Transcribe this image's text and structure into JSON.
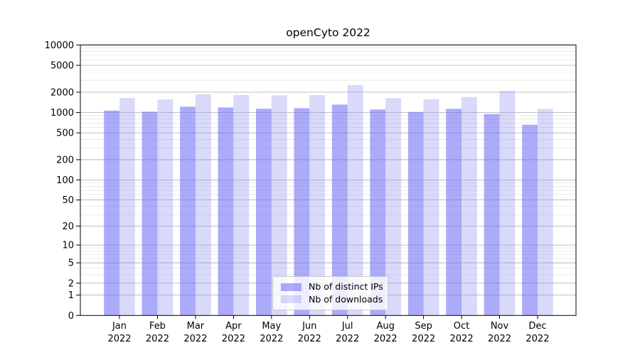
{
  "figure": {
    "title": "openCyto 2022"
  },
  "chart_data": {
    "type": "bar",
    "title": "openCyto 2022",
    "categories": [
      "Jan",
      "Feb",
      "Mar",
      "Apr",
      "May",
      "Jun",
      "Jul",
      "Aug",
      "Sep",
      "Oct",
      "Nov",
      "Dec"
    ],
    "year": "2022",
    "series": [
      {
        "name": "Nb of distinct IPs",
        "color": "#7373f7",
        "opacity": 0.6,
        "values": [
          1070,
          1030,
          1220,
          1190,
          1140,
          1160,
          1310,
          1110,
          1020,
          1135,
          950,
          660
        ]
      },
      {
        "name": "Nb of downloads",
        "color": "#9292f1",
        "opacity": 0.35,
        "values": [
          1640,
          1560,
          1860,
          1820,
          1790,
          1810,
          2550,
          1630,
          1565,
          1695,
          2100,
          1135
        ]
      }
    ],
    "xlabel": "",
    "ylabel": "",
    "yscale": "log1p",
    "ylim": [
      0,
      10000
    ],
    "yticks": [
      0,
      1,
      2,
      5,
      10,
      20,
      50,
      100,
      200,
      500,
      1000,
      2000,
      5000,
      10000
    ],
    "grid": "on",
    "legend_position": "lower center",
    "colors": {
      "major_gridline": "#ababab",
      "minor_gridline": "#e2e2e2",
      "axis": "#000000",
      "legend_border": "#cccccc"
    }
  }
}
